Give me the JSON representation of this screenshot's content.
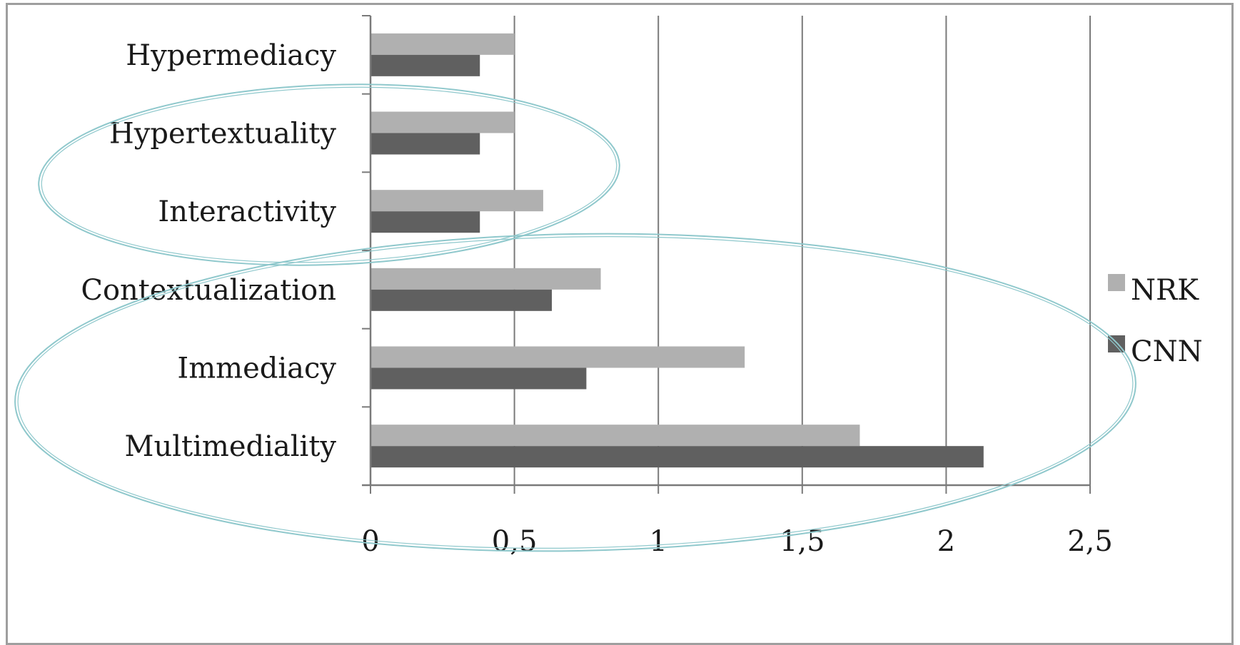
{
  "chart_data": {
    "type": "bar",
    "orientation": "horizontal",
    "categories": [
      "Hypermediacy",
      "Hypertextuality",
      "Interactivity",
      "Contextualization",
      "Immediacy",
      "Multimediality"
    ],
    "series": [
      {
        "name": "NRK",
        "color": "#b0b0b0",
        "values": [
          0.5,
          0.5,
          0.6,
          0.8,
          1.3,
          1.7
        ]
      },
      {
        "name": "CNN",
        "color": "#606060",
        "values": [
          0.38,
          0.38,
          0.38,
          0.63,
          0.75,
          2.13
        ]
      }
    ],
    "x_ticks": [
      "0",
      "0,5",
      "1",
      "1,5",
      "2",
      "2,5"
    ],
    "xlim": [
      0,
      2.5
    ],
    "grid": "vertical major gridlines",
    "legend_placement": "right",
    "annotations": [
      {
        "shape": "ellipse",
        "encloses": [
          "Hypertextuality",
          "Interactivity"
        ],
        "color": "#8fc8cc"
      },
      {
        "shape": "ellipse",
        "encloses": [
          "Contextualization",
          "Immediacy",
          "Multimediality"
        ],
        "color": "#8fc8cc"
      }
    ]
  }
}
